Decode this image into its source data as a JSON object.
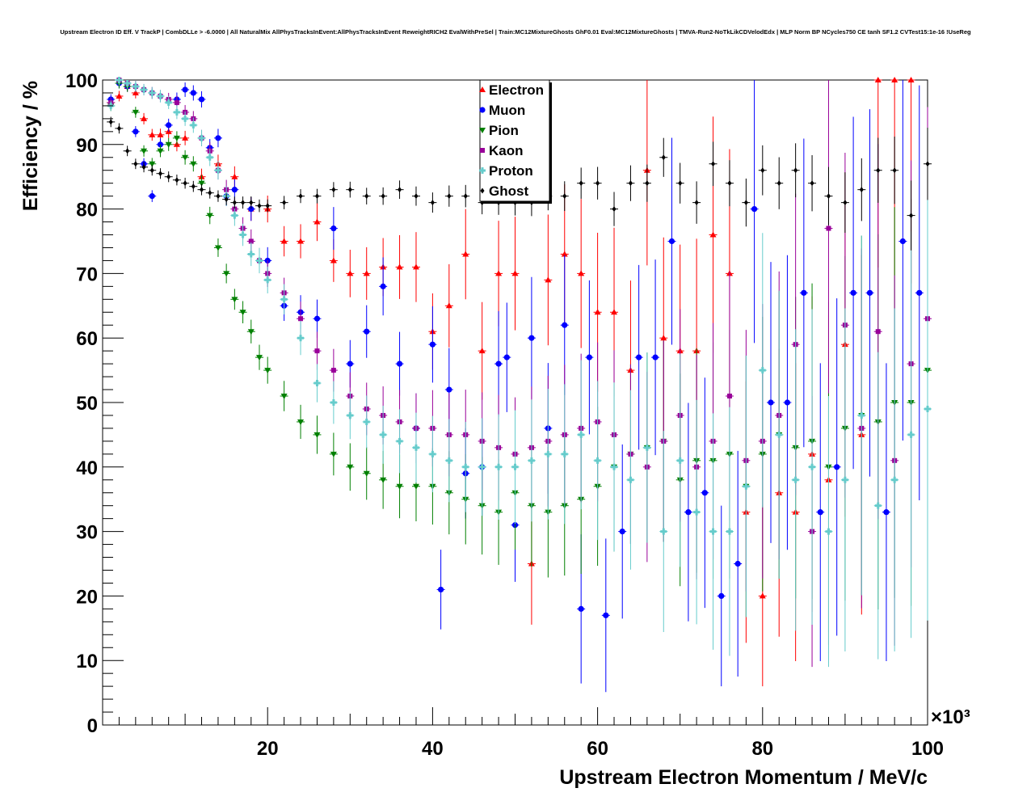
{
  "chart_data": {
    "type": "scatter",
    "title": "Upstream Electron ID Eff. V TrackP | CombDLLe > -6.0000 | All NaturalMix AllPhysTracksInEvent:AllPhysTracksInEvent ReweightRICH2 EvalWithPreSel | Train:MC12MixtureGhosts GhF0.01 Eval:MC12MixtureGhosts | TMVA-Run2-NoTkLikCDVelodEdx | MLP Norm BP NCycles750 CE tanh SF1.2 CVTest15:1e-16 !UseReg",
    "xlabel": "Upstream Electron Momentum / MeV/c",
    "ylabel": "Efficiency / %",
    "x_multiplier": "×10³",
    "xlim": [
      0,
      100000
    ],
    "ylim": [
      0,
      100
    ],
    "x_ticks": [
      {
        "value": 20000,
        "label": "20"
      },
      {
        "value": 40000,
        "label": "40"
      },
      {
        "value": 60000,
        "label": "60"
      },
      {
        "value": 80000,
        "label": "80"
      },
      {
        "value": 100000,
        "label": "100"
      }
    ],
    "y_ticks": [
      {
        "value": 0,
        "label": "0"
      },
      {
        "value": 10,
        "label": "10"
      },
      {
        "value": 20,
        "label": "20"
      },
      {
        "value": 30,
        "label": "30"
      },
      {
        "value": 40,
        "label": "40"
      },
      {
        "value": 50,
        "label": "50"
      },
      {
        "value": 60,
        "label": "60"
      },
      {
        "value": 70,
        "label": "70"
      },
      {
        "value": 80,
        "label": "80"
      },
      {
        "value": 90,
        "label": "90"
      },
      {
        "value": 100,
        "label": "100"
      }
    ],
    "grid": false,
    "legend_position": "top-center",
    "series": [
      {
        "name": "Electron",
        "color": "#ff0000",
        "marker": "triangle-up",
        "x": [
          1000,
          2000,
          3000,
          4000,
          5000,
          6000,
          7000,
          8000,
          9000,
          10000,
          12000,
          14000,
          16000,
          18000,
          20000,
          22000,
          24000,
          26000,
          28000,
          30000,
          32000,
          34000,
          36000,
          38000,
          40000,
          42000,
          44000,
          46000,
          48000,
          50000,
          52000,
          54000,
          56000,
          58000,
          60000,
          62000,
          64000,
          66000,
          68000,
          70000,
          72000,
          74000,
          76000,
          78000,
          80000,
          82000,
          84000,
          86000,
          88000,
          90000,
          92000,
          94000,
          96000,
          98000
        ],
        "y": [
          96.5,
          97.5,
          99,
          98,
          94,
          91.5,
          91.5,
          92,
          90,
          91,
          85,
          87,
          85,
          80,
          80,
          75,
          75,
          78,
          72,
          70,
          70,
          71,
          71,
          71,
          61,
          65,
          73,
          58,
          70,
          70,
          25,
          69,
          73,
          70,
          64,
          64,
          55,
          86,
          60,
          58,
          58,
          76,
          70,
          33,
          20,
          36,
          33,
          42,
          38,
          59,
          45,
          100,
          100,
          100
        ]
      },
      {
        "name": "Muon",
        "color": "#0000ff",
        "marker": "circle",
        "x": [
          1000,
          2000,
          3000,
          4000,
          5000,
          6000,
          7000,
          8000,
          9000,
          10000,
          11000,
          12000,
          13000,
          14000,
          15000,
          16000,
          18000,
          20000,
          22000,
          24000,
          26000,
          28000,
          30000,
          32000,
          34000,
          36000,
          38000,
          40000,
          41000,
          42000,
          44000,
          46000,
          48000,
          49000,
          50000,
          52000,
          54000,
          56000,
          58000,
          59000,
          61000,
          63000,
          65000,
          67000,
          69000,
          71000,
          73000,
          75000,
          77000,
          79000,
          81000,
          83000,
          85000,
          87000,
          89000,
          91000,
          93000,
          95000,
          97000,
          99000
        ],
        "y": [
          97,
          99.5,
          99,
          92,
          87,
          82,
          90,
          93,
          97,
          98.5,
          98,
          97,
          89.5,
          91,
          82,
          83,
          80,
          72,
          65,
          64,
          63,
          77,
          56,
          61,
          68,
          56,
          46,
          59,
          21,
          52,
          39,
          40,
          56,
          57,
          31,
          60,
          46,
          62,
          18,
          57,
          17,
          30,
          57,
          57,
          75,
          33,
          36,
          20,
          25,
          80,
          50,
          50,
          67,
          33,
          40,
          67,
          67,
          33,
          75,
          67
        ]
      },
      {
        "name": "Pion",
        "color": "#008000",
        "marker": "triangle-down",
        "x": [
          1000,
          2000,
          3000,
          4000,
          5000,
          6000,
          7000,
          8000,
          9000,
          10000,
          11000,
          12000,
          13000,
          14000,
          15000,
          16000,
          17000,
          18000,
          19000,
          20000,
          22000,
          24000,
          26000,
          28000,
          30000,
          32000,
          34000,
          36000,
          38000,
          40000,
          42000,
          44000,
          46000,
          48000,
          50000,
          52000,
          54000,
          56000,
          58000,
          60000,
          62000,
          64000,
          66000,
          68000,
          70000,
          72000,
          74000,
          76000,
          78000,
          80000,
          82000,
          84000,
          86000,
          88000,
          90000,
          92000,
          94000,
          96000,
          98000,
          100000
        ],
        "y": [
          96,
          99.5,
          99,
          95,
          89,
          87,
          89,
          90,
          91,
          88,
          87,
          84,
          79,
          74,
          70,
          66,
          64,
          61,
          57,
          55,
          51,
          47,
          45,
          42,
          40,
          39,
          38,
          37,
          37,
          37,
          36,
          35,
          34,
          33,
          36,
          34,
          33,
          34,
          35,
          37,
          40,
          42,
          43,
          44,
          38,
          41,
          41,
          42,
          37,
          42,
          45,
          43,
          44,
          40,
          46,
          48,
          47,
          50,
          50,
          55
        ]
      },
      {
        "name": "Kaon",
        "color": "#990099",
        "marker": "square",
        "x": [
          1000,
          2000,
          3000,
          4000,
          5000,
          6000,
          7000,
          8000,
          9000,
          10000,
          11000,
          12000,
          13000,
          14000,
          15000,
          16000,
          17000,
          18000,
          19000,
          20000,
          22000,
          24000,
          26000,
          28000,
          30000,
          32000,
          34000,
          36000,
          38000,
          40000,
          42000,
          44000,
          46000,
          48000,
          50000,
          52000,
          54000,
          56000,
          58000,
          60000,
          62000,
          64000,
          66000,
          68000,
          70000,
          72000,
          74000,
          76000,
          78000,
          80000,
          82000,
          84000,
          86000,
          88000,
          90000,
          92000,
          94000,
          96000,
          98000,
          100000
        ],
        "y": [
          96.5,
          100,
          99.5,
          99,
          98.5,
          98,
          97.5,
          97,
          96.5,
          95,
          94,
          91,
          89,
          86,
          83,
          80,
          77,
          75,
          72,
          70,
          67,
          63,
          58,
          55,
          51,
          49,
          48,
          47,
          46,
          46,
          45,
          45,
          44,
          43,
          42,
          43,
          44,
          45,
          46,
          47,
          45,
          42,
          40,
          44,
          48,
          40,
          44,
          51,
          41,
          44,
          48,
          59,
          30,
          77,
          62,
          46,
          61,
          41,
          56,
          63
        ]
      },
      {
        "name": "Proton",
        "color": "#66cccc",
        "marker": "cross",
        "x": [
          1000,
          2000,
          3000,
          4000,
          5000,
          6000,
          7000,
          8000,
          9000,
          10000,
          11000,
          12000,
          13000,
          14000,
          15000,
          16000,
          17000,
          18000,
          19000,
          20000,
          22000,
          24000,
          26000,
          28000,
          30000,
          32000,
          34000,
          36000,
          38000,
          40000,
          42000,
          44000,
          46000,
          48000,
          50000,
          52000,
          54000,
          56000,
          58000,
          60000,
          62000,
          64000,
          66000,
          68000,
          70000,
          72000,
          74000,
          76000,
          78000,
          80000,
          82000,
          84000,
          86000,
          88000,
          90000,
          92000,
          94000,
          96000,
          98000,
          100000
        ],
        "y": [
          96,
          100,
          99.5,
          99,
          98.5,
          98,
          97.5,
          96.5,
          95,
          94,
          93,
          91,
          88,
          86,
          82,
          79,
          76,
          73,
          72,
          69,
          66,
          60,
          53,
          50,
          48,
          47,
          45,
          44,
          43,
          42,
          41,
          40,
          40,
          40,
          40,
          41,
          42,
          42,
          45,
          41,
          40,
          38,
          43,
          30,
          41,
          33,
          30,
          30,
          37,
          55,
          45,
          38,
          40,
          30,
          38,
          48,
          34,
          38,
          45,
          49
        ]
      },
      {
        "name": "Ghost",
        "color": "#000000",
        "marker": "diamond",
        "x": [
          1000,
          2000,
          3000,
          4000,
          5000,
          6000,
          7000,
          8000,
          9000,
          10000,
          11000,
          12000,
          13000,
          14000,
          15000,
          16000,
          17000,
          18000,
          19000,
          20000,
          22000,
          24000,
          26000,
          28000,
          30000,
          32000,
          34000,
          36000,
          38000,
          40000,
          42000,
          44000,
          46000,
          48000,
          50000,
          52000,
          54000,
          56000,
          58000,
          60000,
          62000,
          64000,
          66000,
          68000,
          70000,
          72000,
          74000,
          76000,
          78000,
          80000,
          82000,
          84000,
          86000,
          88000,
          90000,
          92000,
          94000,
          96000,
          98000,
          100000
        ],
        "y": [
          93.5,
          92.5,
          89,
          87,
          86.5,
          86,
          85.5,
          85,
          84.5,
          84,
          83.5,
          83,
          82.5,
          82,
          81.5,
          81,
          81,
          81,
          80.5,
          80.5,
          81,
          82,
          82,
          83,
          83,
          82,
          82,
          83,
          82,
          81,
          82,
          82,
          81,
          81,
          81,
          81,
          82,
          82,
          84,
          84,
          80,
          84,
          84,
          88,
          84,
          81,
          87,
          84,
          81,
          86,
          84,
          86,
          84,
          82,
          81,
          83,
          86,
          86,
          79,
          87
        ]
      }
    ]
  }
}
